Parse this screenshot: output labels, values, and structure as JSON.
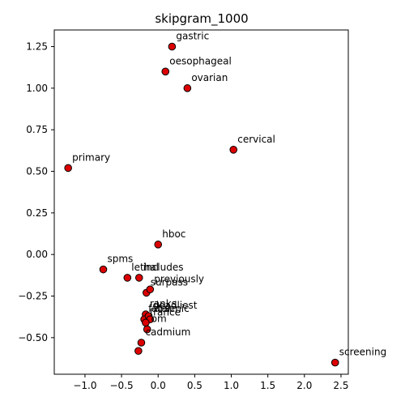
{
  "chart_data": {
    "type": "scatter",
    "title": "skipgram_1000",
    "xlabel": "",
    "ylabel": "",
    "xlim": [
      -1.42,
      2.6
    ],
    "ylim": [
      -0.72,
      1.35
    ],
    "grid": false,
    "marker_color": "#dd0000",
    "marker_edge": "#000000",
    "x_ticks": [
      -1.0,
      -0.5,
      0.0,
      0.5,
      1.0,
      1.5,
      2.0,
      2.5
    ],
    "x_tick_labels": [
      "−1.0",
      "−0.5",
      "0.0",
      "0.5",
      "1.0",
      "1.5",
      "2.0",
      "2.5"
    ],
    "y_ticks": [
      -0.5,
      -0.25,
      0.0,
      0.25,
      0.5,
      0.75,
      1.0,
      1.25
    ],
    "y_tick_labels": [
      "−0.50",
      "−0.25",
      "0.00",
      "0.25",
      "0.50",
      "0.75",
      "1.00",
      "1.25"
    ],
    "points": [
      {
        "label": "gastric",
        "x": 0.19,
        "y": 1.25
      },
      {
        "label": "oesophageal",
        "x": 0.1,
        "y": 1.1
      },
      {
        "label": "ovarian",
        "x": 0.4,
        "y": 1.0
      },
      {
        "label": "cervical",
        "x": 1.03,
        "y": 0.63
      },
      {
        "label": "primary",
        "x": -1.23,
        "y": 0.52
      },
      {
        "label": "hboc",
        "x": 0.0,
        "y": 0.06
      },
      {
        "label": "spms",
        "x": -0.75,
        "y": -0.09
      },
      {
        "label": "lethal",
        "x": -0.42,
        "y": -0.14
      },
      {
        "label": "includes",
        "x": -0.26,
        "y": -0.14
      },
      {
        "label": "surpass",
        "x": -0.16,
        "y": -0.23
      },
      {
        "label": "previously",
        "x": -0.11,
        "y": -0.21
      },
      {
        "label": "ranks",
        "x": -0.17,
        "y": -0.36
      },
      {
        "label": "fatal",
        "x": -0.19,
        "y": -0.39
      },
      {
        "label": "deadliest",
        "x": -0.13,
        "y": -0.37
      },
      {
        "label": "arsenic",
        "x": -0.11,
        "y": -0.39
      },
      {
        "label": "france",
        "x": -0.17,
        "y": -0.41
      },
      {
        "label": "om",
        "x": -0.15,
        "y": -0.45
      },
      {
        "label": "cadmium",
        "x": -0.23,
        "y": -0.53
      },
      {
        "label": "screening",
        "x": 2.42,
        "y": -0.65
      },
      {
        "label": "",
        "x": -0.27,
        "y": -0.58
      }
    ]
  }
}
